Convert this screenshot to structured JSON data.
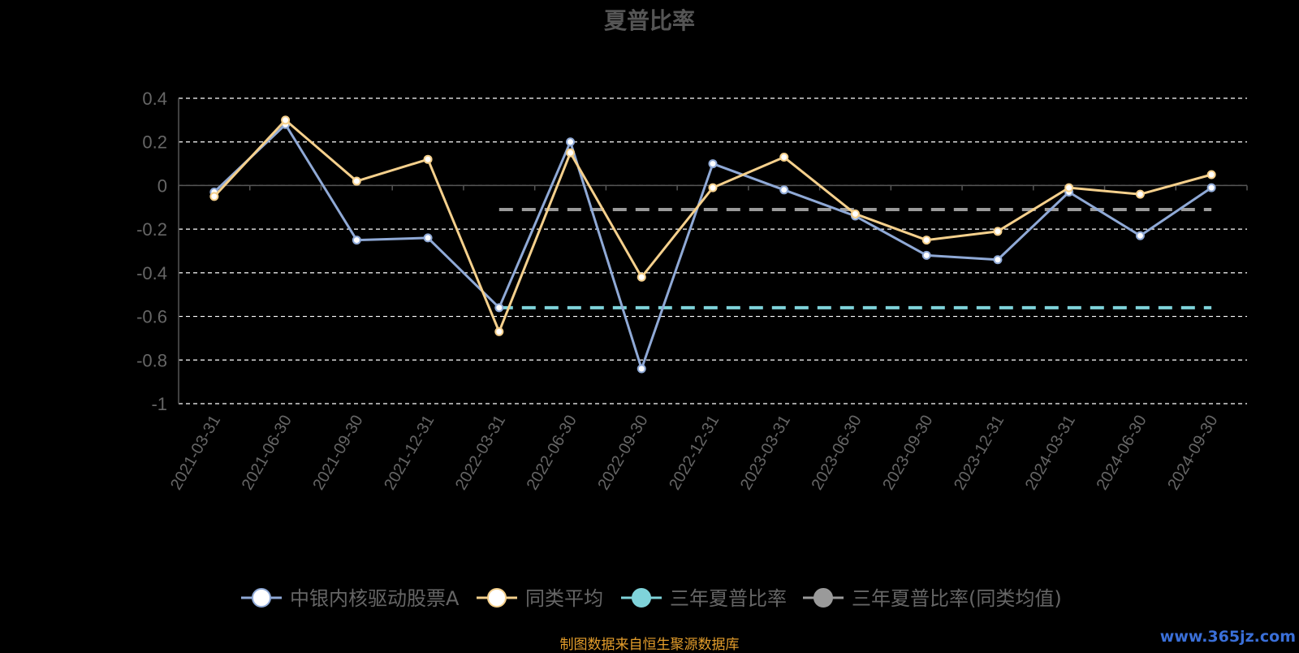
{
  "title": "夏普比率",
  "source_note": "制图数据来自恒生聚源数据库",
  "watermark": "www.365jz.com",
  "colors": {
    "fund": "#8fa9d6",
    "peer": "#f5d08c",
    "three_year": "#7fd3da",
    "three_year_peer": "#9a9a9a",
    "grid": "#ffffff",
    "axis": "#555555",
    "text": "#666666"
  },
  "chart_data": {
    "type": "line",
    "title": "夏普比率",
    "categories": [
      "2021-03-31",
      "2021-06-30",
      "2021-09-30",
      "2021-12-31",
      "2022-03-31",
      "2022-06-30",
      "2022-09-30",
      "2022-12-31",
      "2023-03-31",
      "2023-06-30",
      "2023-09-30",
      "2023-12-31",
      "2024-03-31",
      "2024-06-30",
      "2024-09-30"
    ],
    "y_ticks": [
      "0.4",
      "0.2",
      "0",
      "-0.2",
      "-0.4",
      "-0.6",
      "-0.8",
      "-1"
    ],
    "ylim": [
      -1,
      0.4
    ],
    "grid": true,
    "legend_position": "bottom",
    "series": [
      {
        "name": "中银内核驱动股票A",
        "color_key": "fund",
        "values": [
          -0.03,
          0.28,
          -0.25,
          -0.24,
          -0.56,
          0.2,
          -0.84,
          0.1,
          -0.02,
          -0.14,
          -0.32,
          -0.34,
          -0.03,
          -0.23,
          -0.01
        ]
      },
      {
        "name": "同类平均",
        "color_key": "peer",
        "values": [
          -0.05,
          0.3,
          0.02,
          0.12,
          -0.67,
          0.15,
          -0.42,
          -0.01,
          0.13,
          -0.13,
          -0.25,
          -0.21,
          -0.01,
          -0.04,
          0.05
        ]
      },
      {
        "name": "三年夏普比率",
        "color_key": "three_year",
        "dashed": true,
        "start_category": "2022-03-31",
        "end_category": "2024-09-30",
        "value": -0.56
      },
      {
        "name": "三年夏普比率(同类均值)",
        "color_key": "three_year_peer",
        "dashed": true,
        "start_category": "2022-03-31",
        "end_category": "2024-09-30",
        "value": -0.11
      }
    ]
  }
}
